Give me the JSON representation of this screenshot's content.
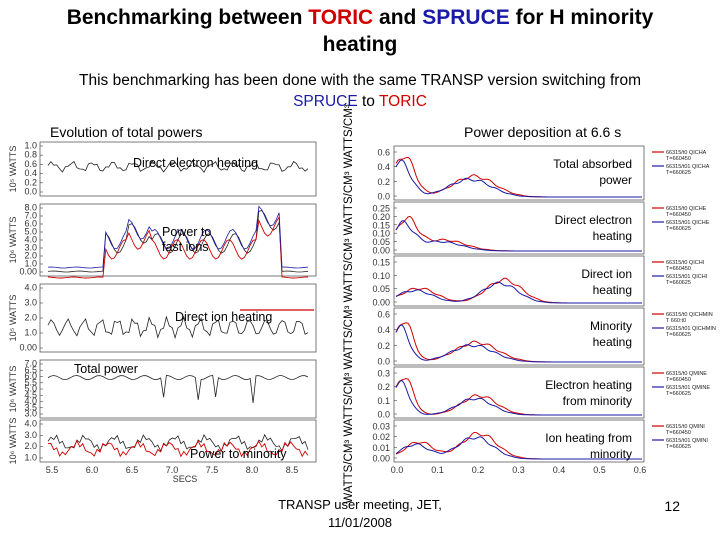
{
  "title": {
    "prefix": "Benchmarking between ",
    "toric": "TORIC",
    "mid": " and ",
    "spruce": "SPRUCE",
    "suffix": " for H minority",
    "line2": "heating"
  },
  "subtitle": {
    "line1": "This benchmarking has been done with the same TRANSP version switching from",
    "spruce": "SPRUCE",
    "to": " to ",
    "toric": "TORIC"
  },
  "left_panel": {
    "title": "Evolution of total powers",
    "x_axis_label": "SECS",
    "x_ticks": [
      "5.5",
      "6.0",
      "6.5",
      "7.0",
      "7.5",
      "8.0",
      "8.5"
    ],
    "plots": [
      {
        "label": "Direct electron heating",
        "y_unit": "10⁵ WATTS",
        "y_ticks": [
          "1.0",
          "0.8",
          "0.6",
          "0.4",
          "0.2",
          "0.0"
        ]
      },
      {
        "label": "Power to fast ions",
        "y_unit": "10⁶ WATTS",
        "y_ticks": [
          "8.0",
          "7.0",
          "6.0",
          "5.0",
          "4.0",
          "3.0",
          "2.0",
          "1.0",
          "0.00"
        ]
      },
      {
        "label": "Direct ion heating",
        "y_unit": "10⁵ WATTS",
        "y_ticks": [
          "4.0",
          "3.0",
          "2.0",
          "1.0",
          "0.00"
        ]
      },
      {
        "label": "Total power",
        "y_unit": "10⁶ WATTS",
        "y_ticks": [
          "7.0",
          "6.5",
          "6.0",
          "5.5",
          "5.0",
          "4.5",
          "4.0",
          "3.5",
          "3.0"
        ]
      },
      {
        "label": "Power to minority",
        "y_unit": "10⁶ WATTS",
        "y_ticks": [
          "4.0",
          "3.0",
          "2.0",
          "1.0"
        ]
      }
    ]
  },
  "right_panel": {
    "title": "Power deposition at 6.6 s",
    "y_axis_label": "WATTS/CM³ WATTS/CM³ WATTS/CM³ WATTS/CM³ WATTS/CM³ WATTS/CM³",
    "x_ticks": [
      "0.0",
      "0.1",
      "0.2",
      "0.3",
      "0.4",
      "0.5",
      "0.6"
    ],
    "plots": [
      {
        "label_line1": "Total absorbed",
        "label_line2": "power",
        "y_ticks": [
          "0.6",
          "0.4",
          "0.2",
          "0.0"
        ],
        "legend": [
          "66315/t0 QICHA",
          "T=660450",
          "66315/t01 QICHA",
          "T=660625"
        ]
      },
      {
        "label_line1": "Direct electron",
        "label_line2": "heating",
        "y_ticks": [
          "0.25",
          "0.20",
          "0.15",
          "0.10",
          "0.05",
          "0.00"
        ],
        "legend": [
          "66315/t0 QICHE",
          "T=660450",
          "66315/t01 QICHE",
          "T=660625"
        ]
      },
      {
        "label_line1": "Direct ion",
        "label_line2": "heating",
        "y_ticks": [
          "0.15",
          "0.10",
          "0.05",
          "0.00"
        ],
        "legend": [
          "66315/t0 QICHI",
          "T=660450",
          "66315/t01 QICHI",
          "T=660625"
        ]
      },
      {
        "label_line1": "Minority",
        "label_line2": "heating",
        "y_ticks": [
          "0.6",
          "0.4",
          "0.2",
          "0.0"
        ],
        "legend": [
          "66315/t0 QICHMIN",
          "T 660:t0",
          "66315/t01 QICHMIN",
          "T=660625"
        ]
      },
      {
        "label_line1": "Electron heating",
        "label_line2": "from minority",
        "y_ticks": [
          "0.3",
          "0.2",
          "0.1",
          "0.0"
        ],
        "legend": [
          "66315/t0 QMINE",
          "T=660450",
          "66315/t01 QMINE",
          "T=660625"
        ]
      },
      {
        "label_line1": "Ion heating from",
        "label_line2": "minority",
        "y_ticks": [
          "0.03",
          "0.02",
          "0.01",
          "0.00"
        ],
        "legend": [
          "66315/t0 QMINI",
          "T=660450",
          "66315/t01 QMINI",
          "T=660625"
        ]
      }
    ]
  },
  "colors": {
    "toric": "#d00000",
    "spruce": "#1a1aa8",
    "trace": "#222222"
  },
  "footer": {
    "line1": "TRANSP user meeting, JET,",
    "line2": "11/01/2008"
  },
  "page_number": "12"
}
